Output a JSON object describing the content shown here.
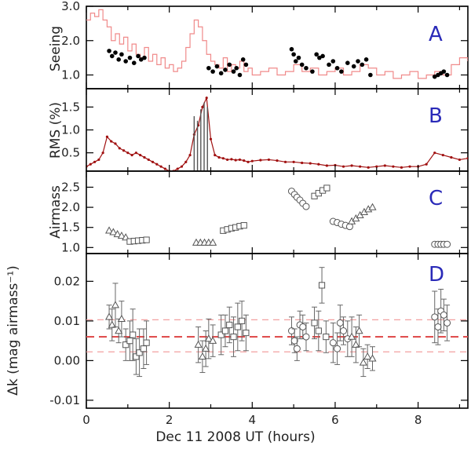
{
  "chart_data": [
    {
      "panel": "A",
      "type": "line",
      "ylabel": "Seeing",
      "ylim": [
        0.6,
        3.0
      ],
      "yticks": [
        "1.0",
        "2.0",
        "3.0"
      ],
      "ytick_values": [
        1.0,
        2.0,
        3.0
      ],
      "series": [
        {
          "style": "step-line",
          "color": "#f08a8a",
          "x": [
            0.0,
            0.1,
            0.2,
            0.3,
            0.4,
            0.5,
            0.6,
            0.7,
            0.8,
            0.9,
            1.0,
            1.1,
            1.2,
            1.3,
            1.4,
            1.5,
            1.6,
            1.7,
            1.8,
            1.9,
            2.0,
            2.1,
            2.2,
            2.3,
            2.4,
            2.5,
            2.6,
            2.7,
            2.8,
            2.9,
            3.0,
            3.1,
            3.2,
            3.3,
            3.4,
            3.5,
            3.6,
            3.7,
            3.8,
            3.9,
            4.0,
            4.2,
            4.4,
            4.6,
            4.8,
            5.0,
            5.2,
            5.4,
            5.6,
            5.8,
            6.0,
            6.2,
            6.4,
            6.6,
            6.8,
            7.0,
            7.2,
            7.4,
            7.6,
            7.8,
            8.0,
            8.2,
            8.4,
            8.6,
            8.8,
            9.0,
            9.2
          ],
          "y": [
            2.6,
            2.8,
            2.7,
            2.9,
            2.6,
            2.4,
            2.0,
            2.2,
            1.9,
            2.1,
            1.7,
            1.9,
            1.6,
            1.5,
            1.8,
            1.4,
            1.6,
            1.3,
            1.5,
            1.2,
            1.3,
            1.1,
            1.2,
            1.4,
            1.8,
            2.2,
            2.6,
            2.4,
            2.0,
            1.6,
            1.4,
            1.3,
            1.2,
            1.5,
            1.1,
            1.3,
            1.2,
            1.4,
            1.1,
            1.2,
            1.0,
            1.1,
            1.2,
            1.0,
            1.1,
            1.3,
            1.1,
            1.2,
            1.0,
            1.1,
            1.2,
            1.0,
            1.1,
            1.3,
            1.2,
            1.0,
            1.1,
            0.9,
            1.0,
            1.1,
            0.9,
            1.0,
            1.1,
            1.0,
            1.3,
            1.5,
            1.4
          ]
        },
        {
          "style": "dots",
          "color": "#000000",
          "x": [
            0.55,
            0.62,
            0.7,
            0.78,
            0.85,
            0.95,
            1.05,
            1.15,
            1.25,
            1.32,
            1.4,
            2.95,
            3.05,
            3.15,
            3.25,
            3.35,
            3.45,
            3.55,
            3.62,
            3.7,
            3.78,
            3.85,
            4.95,
            5.0,
            5.05,
            5.12,
            5.2,
            5.3,
            5.45,
            5.55,
            5.62,
            5.7,
            5.85,
            5.95,
            6.05,
            6.15,
            6.3,
            6.45,
            6.55,
            6.65,
            6.75,
            6.85,
            8.4,
            8.48,
            8.55,
            8.62,
            8.7
          ],
          "y": [
            1.7,
            1.55,
            1.65,
            1.45,
            1.6,
            1.4,
            1.5,
            1.35,
            1.55,
            1.45,
            1.5,
            1.2,
            1.1,
            1.25,
            1.05,
            1.15,
            1.3,
            1.1,
            1.2,
            1.0,
            1.45,
            1.3,
            1.75,
            1.6,
            1.4,
            1.5,
            1.3,
            1.2,
            1.1,
            1.6,
            1.5,
            1.55,
            1.3,
            1.4,
            1.2,
            1.1,
            1.35,
            1.25,
            1.4,
            1.3,
            1.45,
            1.0,
            0.95,
            1.0,
            1.05,
            1.1,
            1.0
          ]
        }
      ]
    },
    {
      "panel": "B",
      "type": "line",
      "ylabel": "RMS  (%)",
      "ylim": [
        0.1,
        1.9
      ],
      "yticks": [
        "0.5",
        "1.0",
        "1.5"
      ],
      "ytick_values": [
        0.5,
        1.0,
        1.5
      ],
      "series": [
        {
          "style": "line-dots",
          "color": "#a01010",
          "x": [
            0.0,
            0.1,
            0.2,
            0.3,
            0.4,
            0.5,
            0.6,
            0.7,
            0.8,
            0.9,
            1.0,
            1.1,
            1.2,
            1.3,
            1.4,
            1.5,
            1.6,
            1.7,
            1.8,
            1.9,
            2.0,
            2.1,
            2.2,
            2.3,
            2.4,
            2.5,
            2.6,
            2.7,
            2.8,
            2.9,
            3.0,
            3.1,
            3.2,
            3.3,
            3.4,
            3.5,
            3.6,
            3.7,
            3.8,
            3.9,
            4.0,
            4.2,
            4.4,
            4.6,
            4.8,
            5.0,
            5.2,
            5.4,
            5.6,
            5.8,
            6.0,
            6.2,
            6.4,
            6.6,
            6.8,
            7.0,
            7.2,
            7.4,
            7.6,
            7.8,
            8.0,
            8.2,
            8.4,
            8.6,
            8.8,
            9.0,
            9.2
          ],
          "y": [
            0.2,
            0.25,
            0.3,
            0.35,
            0.5,
            0.85,
            0.75,
            0.7,
            0.6,
            0.55,
            0.5,
            0.45,
            0.5,
            0.45,
            0.4,
            0.35,
            0.3,
            0.25,
            0.2,
            0.15,
            0.1,
            0.1,
            0.15,
            0.2,
            0.3,
            0.45,
            0.9,
            1.1,
            1.5,
            1.7,
            0.8,
            0.45,
            0.4,
            0.38,
            0.35,
            0.36,
            0.34,
            0.35,
            0.33,
            0.3,
            0.32,
            0.34,
            0.35,
            0.33,
            0.3,
            0.3,
            0.28,
            0.27,
            0.25,
            0.22,
            0.23,
            0.2,
            0.22,
            0.2,
            0.18,
            0.2,
            0.22,
            0.2,
            0.18,
            0.2,
            0.2,
            0.25,
            0.5,
            0.45,
            0.4,
            0.35,
            0.38
          ]
        },
        {
          "style": "spikes",
          "color": "#555555",
          "x": [
            2.6,
            2.68,
            2.76,
            2.84,
            2.92
          ],
          "y": [
            1.3,
            1.2,
            1.45,
            1.6,
            1.5
          ]
        }
      ]
    },
    {
      "panel": "C",
      "type": "scatter",
      "ylabel": "Airmass",
      "ylim": [
        0.85,
        2.9
      ],
      "yticks": [
        "1.0",
        "1.5",
        "2.0",
        "2.5"
      ],
      "ytick_values": [
        1.0,
        1.5,
        2.0,
        2.5
      ],
      "series": [
        {
          "marker": "triangle",
          "x": [
            0.55,
            0.65,
            0.75,
            0.85,
            0.95
          ],
          "y": [
            1.42,
            1.38,
            1.33,
            1.29,
            1.25
          ]
        },
        {
          "marker": "square",
          "x": [
            1.05,
            1.15,
            1.25,
            1.35,
            1.45
          ],
          "y": [
            1.15,
            1.16,
            1.17,
            1.18,
            1.19
          ]
        },
        {
          "marker": "triangle",
          "x": [
            2.65,
            2.75,
            2.85,
            2.95,
            3.05
          ],
          "y": [
            1.12,
            1.12,
            1.12,
            1.12,
            1.12
          ]
        },
        {
          "marker": "square",
          "x": [
            3.3,
            3.4,
            3.5,
            3.6,
            3.7,
            3.8
          ],
          "y": [
            1.42,
            1.45,
            1.48,
            1.5,
            1.53,
            1.55
          ]
        },
        {
          "marker": "circle",
          "x": [
            4.95,
            5.02,
            5.08,
            5.15,
            5.22,
            5.3
          ],
          "y": [
            2.4,
            2.32,
            2.25,
            2.18,
            2.1,
            2.02
          ]
        },
        {
          "marker": "square",
          "x": [
            5.5,
            5.6,
            5.7,
            5.8
          ],
          "y": [
            2.28,
            2.35,
            2.42,
            2.48
          ]
        },
        {
          "marker": "circle",
          "x": [
            5.95,
            6.05,
            6.15,
            6.25,
            6.35
          ],
          "y": [
            1.65,
            1.62,
            1.58,
            1.55,
            1.52
          ]
        },
        {
          "marker": "triangle",
          "x": [
            6.4,
            6.5,
            6.6,
            6.7,
            6.8,
            6.9
          ],
          "y": [
            1.65,
            1.72,
            1.8,
            1.88,
            1.95,
            2.0
          ]
        },
        {
          "marker": "circle",
          "x": [
            8.4,
            8.48,
            8.55,
            8.62,
            8.7
          ],
          "y": [
            1.08,
            1.08,
            1.08,
            1.08,
            1.08
          ]
        }
      ]
    },
    {
      "panel": "D",
      "type": "scatter",
      "xlabel": "Dec 11 2008 UT (hours)",
      "ylabel": "Δk  (mag airmass⁻¹)",
      "xlim": [
        0,
        9.2
      ],
      "ylim": [
        -0.012,
        0.027
      ],
      "xticks": [
        "0",
        "2",
        "4",
        "6",
        "8"
      ],
      "xtick_values": [
        0,
        2,
        4,
        6,
        8
      ],
      "yticks": [
        "-0.01",
        "0.00",
        "0.01",
        "0.02"
      ],
      "ytick_values": [
        -0.01,
        0.0,
        0.01,
        0.02
      ],
      "reference_lines": [
        {
          "y": 0.006,
          "color": "#e05050",
          "style": "thick-dashed"
        },
        {
          "y": 0.0103,
          "color": "#f2a0a0",
          "style": "thin-dashed"
        },
        {
          "y": 0.0022,
          "color": "#f2a0a0",
          "style": "thin-dashed"
        }
      ],
      "series": [
        {
          "marker": "triangle",
          "x": [
            0.55,
            0.62,
            0.7,
            0.78,
            0.85
          ],
          "y": [
            0.011,
            0.009,
            0.014,
            0.0075,
            0.0105
          ],
          "err": [
            0.003,
            0.004,
            0.0055,
            0.003,
            0.0045
          ]
        },
        {
          "marker": "square",
          "x": [
            0.95,
            1.05,
            1.12,
            1.2,
            1.28,
            1.38,
            1.45
          ],
          "y": [
            0.004,
            0.005,
            0.0065,
            0.001,
            0.002,
            0.003,
            0.0045
          ],
          "err": [
            0.004,
            0.005,
            0.0065,
            0.0045,
            0.006,
            0.005,
            0.0055
          ]
        },
        {
          "marker": "triangle",
          "x": [
            2.7,
            2.8,
            2.88,
            2.95,
            3.05
          ],
          "y": [
            0.004,
            0.001,
            0.003,
            0.0055,
            0.005
          ],
          "err": [
            0.0045,
            0.004,
            0.0045,
            0.005,
            0.004
          ]
        },
        {
          "marker": "square",
          "x": [
            3.25,
            3.35,
            3.45,
            3.55,
            3.65,
            3.75,
            3.85
          ],
          "y": [
            0.0065,
            0.0075,
            0.009,
            0.006,
            0.0085,
            0.01,
            0.007
          ],
          "err": [
            0.005,
            0.004,
            0.0045,
            0.005,
            0.006,
            0.005,
            0.0045
          ]
        },
        {
          "marker": "circle",
          "x": [
            4.95,
            5.02,
            5.08,
            5.15,
            5.22,
            5.3
          ],
          "y": [
            0.0075,
            0.005,
            0.003,
            0.009,
            0.0085,
            0.006
          ],
          "err": [
            0.0035,
            0.003,
            0.003,
            0.0035,
            0.003,
            0.0035
          ]
        },
        {
          "marker": "square",
          "x": [
            5.5,
            5.6,
            5.68,
            5.78
          ],
          "y": [
            0.0095,
            0.0075,
            0.019,
            0.006
          ],
          "err": [
            0.004,
            0.005,
            0.0045,
            0.004
          ]
        },
        {
          "marker": "circle",
          "x": [
            5.95,
            6.05,
            6.12,
            6.2,
            6.3
          ],
          "y": [
            0.0045,
            0.003,
            0.0095,
            0.0075,
            0.0055
          ],
          "err": [
            0.005,
            0.004,
            0.0045,
            0.0035,
            0.0045
          ]
        },
        {
          "marker": "triangle",
          "x": [
            6.4,
            6.5,
            6.58,
            6.68,
            6.78,
            6.9
          ],
          "y": [
            0.006,
            0.004,
            0.0075,
            -0.0005,
            0.001,
            0.0005
          ],
          "err": [
            0.005,
            0.0045,
            0.004,
            0.0035,
            0.003,
            0.003
          ]
        },
        {
          "marker": "circle",
          "x": [
            8.4,
            8.48,
            8.55,
            8.62,
            8.7
          ],
          "y": [
            0.011,
            0.0085,
            0.0125,
            0.0115,
            0.0095
          ],
          "err": [
            0.0065,
            0.0045,
            0.0055,
            0.004,
            0.0045
          ]
        }
      ]
    }
  ]
}
